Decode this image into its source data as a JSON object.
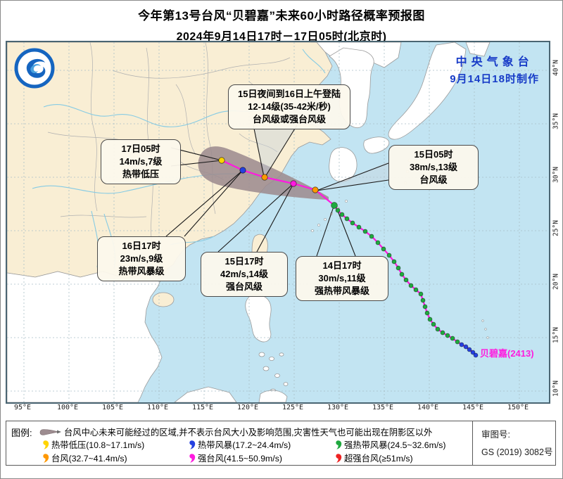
{
  "title": {
    "line1": "今年第13号台风“贝碧嘉”未来60小时路径概率预报图",
    "line2": "2024年9月14日17时－17日05时(北京时)"
  },
  "credit": {
    "line1": "中央气象台",
    "line2": "9月14日18时制作"
  },
  "map": {
    "storm_label": "贝碧嘉(2413)",
    "axis": {
      "lon": [
        "95°E",
        "100°E",
        "105°E",
        "110°E",
        "115°E",
        "120°E",
        "125°E",
        "130°E",
        "135°E",
        "140°E",
        "145°E",
        "150°E"
      ],
      "lat": [
        "40°N",
        "35°N",
        "30°N",
        "25°N",
        "20°N",
        "15°N",
        "10°N"
      ]
    },
    "boxes": {
      "landfall": {
        "lines": [
          "15日夜间到16日上午登陆",
          "12-14级(35-42米/秒)",
          "台风级或强台风级"
        ]
      },
      "d17h05": {
        "lines": [
          "17日05时",
          "14m/s,7级",
          "热带低压"
        ]
      },
      "d16h17": {
        "lines": [
          "16日17时",
          "23m/s,9级",
          "热带风暴级"
        ]
      },
      "d15h17": {
        "lines": [
          "15日17时",
          "42m/s,14级",
          "强台风级"
        ]
      },
      "d14h17": {
        "lines": [
          "14日17时",
          "30m/s,11级",
          "强热带风暴级"
        ]
      },
      "d15h05": {
        "lines": [
          "15日05时",
          "38m/s,13级",
          "台风级"
        ]
      }
    },
    "colors": {
      "green": "#1fa83e",
      "blue": "#2440e0",
      "yellow": "#ffd400",
      "orange": "#ff9800",
      "magenta": "#ff1adf",
      "red": "#ee2222",
      "track_line": "#ff1adf",
      "cone": "#9d8c90",
      "ocean": "#c2e4f2",
      "china_land": "#f9eed4",
      "foreign_land": "#ffffff"
    },
    "track": {
      "observed": [
        [
          465,
          232,
          "green"
        ],
        [
          470,
          239,
          "green"
        ],
        [
          476,
          245,
          "green"
        ],
        [
          483,
          251,
          "green"
        ],
        [
          491,
          257,
          "green"
        ],
        [
          500,
          263,
          "green"
        ],
        [
          509,
          269,
          "green"
        ],
        [
          518,
          276,
          "green"
        ],
        [
          527,
          285,
          "green"
        ],
        [
          535,
          294,
          "green"
        ],
        [
          543,
          303,
          "green"
        ],
        [
          550,
          312,
          "green"
        ],
        [
          556,
          321,
          "green"
        ],
        [
          561,
          330,
          "green"
        ],
        [
          567,
          338,
          "green"
        ],
        [
          574,
          346,
          "green"
        ],
        [
          581,
          352,
          "green"
        ],
        [
          588,
          358,
          "green"
        ],
        [
          591,
          367,
          "green"
        ],
        [
          594,
          376,
          "green"
        ],
        [
          597,
          385,
          "green"
        ],
        [
          601,
          394,
          "green"
        ],
        [
          606,
          401,
          "green"
        ],
        [
          612,
          408,
          "green"
        ],
        [
          619,
          413,
          "green"
        ],
        [
          626,
          417,
          "green"
        ],
        [
          633,
          421,
          "green"
        ],
        [
          640,
          426,
          "green"
        ],
        [
          646,
          430,
          "blue"
        ],
        [
          652,
          433,
          "blue"
        ],
        [
          657,
          437,
          "blue"
        ],
        [
          662,
          441,
          "blue"
        ],
        [
          666,
          445,
          "blue"
        ]
      ],
      "forecast": [
        [
          438,
          210,
          "orange"
        ],
        [
          407,
          201,
          "magenta"
        ],
        [
          366,
          192,
          "orange"
        ],
        [
          335,
          182,
          "blue"
        ],
        [
          305,
          168,
          "yellow"
        ]
      ]
    }
  },
  "legend": {
    "title": "图例:",
    "cone_note": "台风中心未来可能经过的区域,并不表示台风大小及影响范围,灾害性天气也可能出现在阴影区以外",
    "items": [
      {
        "label": "热带低压(10.8~17.1m/s)",
        "color_key": "yellow"
      },
      {
        "label": "热带风暴(17.2~24.4m/s)",
        "color_key": "blue"
      },
      {
        "label": "强热带风暴(24.5~32.6m/s)",
        "color_key": "green"
      },
      {
        "label": "台风(32.7~41.4m/s)",
        "color_key": "orange"
      },
      {
        "label": "强台风(41.5~50.9m/s)",
        "color_key": "magenta"
      },
      {
        "label": "超强台风(≥51m/s)",
        "color_key": "red"
      }
    ]
  },
  "review": {
    "label": "审图号:",
    "number": "GS (2019) 3082号"
  }
}
